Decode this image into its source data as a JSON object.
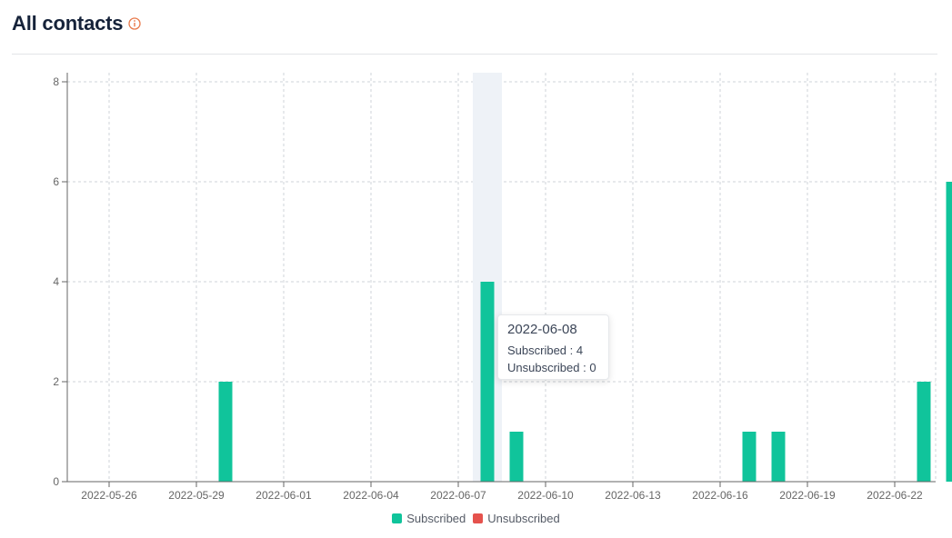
{
  "header": {
    "title": "All contacts",
    "info_icon": "info-circle-icon"
  },
  "colors": {
    "subscribed": "#10c49b",
    "unsubscribed": "#e5524d",
    "highlight": "#eef2f7"
  },
  "chart_data": {
    "type": "bar",
    "title": "",
    "xlabel": "",
    "ylabel": "",
    "x_ticks": [
      "2022-05-26",
      "2022-05-29",
      "2022-06-01",
      "2022-06-04",
      "2022-06-07",
      "2022-06-10",
      "2022-06-13",
      "2022-06-16",
      "2022-06-19",
      "2022-06-22"
    ],
    "x_range": [
      "2022-05-24",
      "2022-06-23"
    ],
    "ylim": [
      0,
      8
    ],
    "y_ticks": [
      0,
      2,
      4,
      6,
      8
    ],
    "grid": true,
    "legend_position": "bottom",
    "highlighted_category": "2022-06-08",
    "series": [
      {
        "name": "Subscribed",
        "points": [
          {
            "x": "2022-05-30",
            "y": 2
          },
          {
            "x": "2022-06-08",
            "y": 4
          },
          {
            "x": "2022-06-09",
            "y": 1
          },
          {
            "x": "2022-06-17",
            "y": 1
          },
          {
            "x": "2022-06-18",
            "y": 1
          },
          {
            "x": "2022-06-23",
            "y": 2
          },
          {
            "x": "2022-06-24",
            "y": 6
          }
        ]
      },
      {
        "name": "Unsubscribed",
        "points": []
      }
    ]
  },
  "tooltip": {
    "date": "2022-06-08",
    "subscribed_label": "Subscribed :",
    "subscribed_value": "4",
    "unsubscribed_label": "Unsubscribed :",
    "unsubscribed_value": "0"
  },
  "legend": {
    "subscribed": "Subscribed",
    "unsubscribed": "Unsubscribed"
  }
}
